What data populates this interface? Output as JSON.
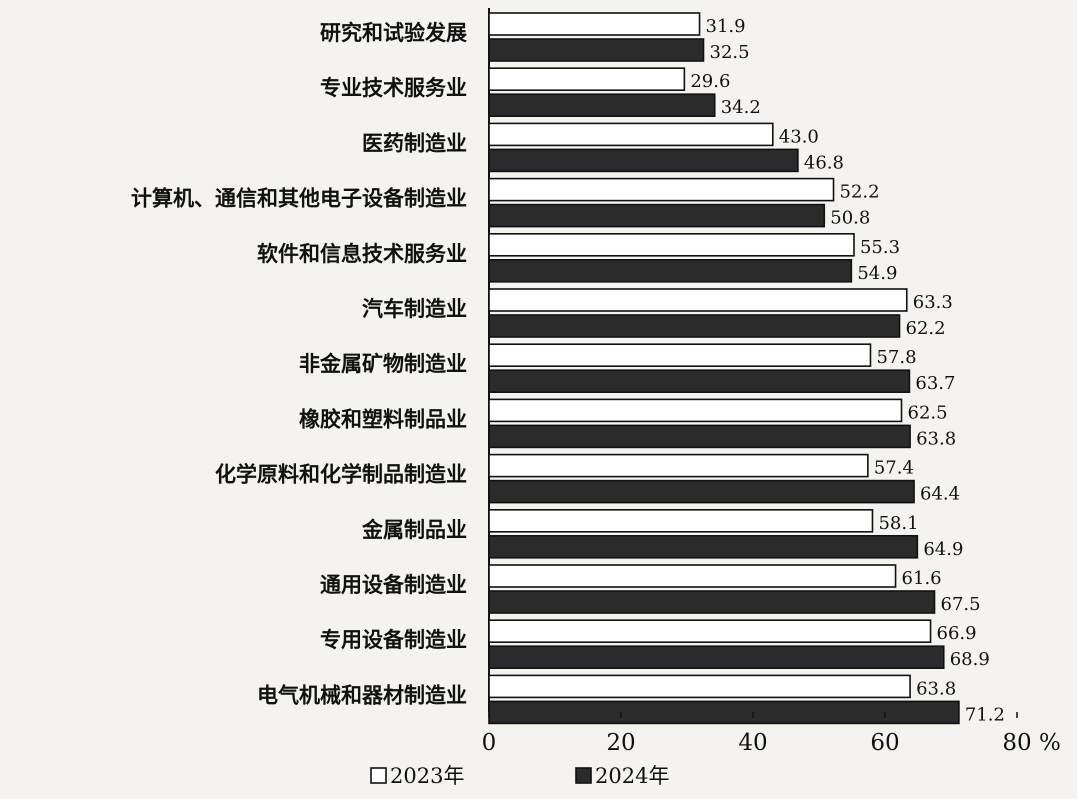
{
  "chart_data": {
    "type": "bar",
    "orientation": "horizontal",
    "categories": [
      "研究和试验发展",
      "专业技术服务业",
      "医药制造业",
      "计算机、通信和其他电子设备制造业",
      "软件和信息技术服务业",
      "汽车制造业",
      "非金属矿物制造业",
      "橡胶和塑料制品业",
      "化学原料和化学制品制造业",
      "金属制品业",
      "通用设备制造业",
      "专用设备制造业",
      "电气机械和器材制造业"
    ],
    "series": [
      {
        "name": "2023年",
        "color": "#ffffff",
        "values": [
          31.9,
          29.6,
          43.0,
          52.2,
          55.3,
          63.3,
          57.8,
          62.5,
          57.4,
          58.1,
          61.6,
          66.9,
          63.8
        ],
        "value_labels": [
          "31.9",
          "29.6",
          "43.0",
          "52.2",
          "55.3",
          "63.3",
          "57.8",
          "62.5",
          "57.4",
          "58.1",
          "61.6",
          "66.9",
          "63.8"
        ]
      },
      {
        "name": "2024年",
        "color": "#2b2b2b",
        "values": [
          32.5,
          34.2,
          46.8,
          50.8,
          54.9,
          62.2,
          63.7,
          63.8,
          64.4,
          64.9,
          67.5,
          68.9,
          71.2
        ],
        "value_labels": [
          "32.5",
          "34.2",
          "46.8",
          "50.8",
          "54.9",
          "62.2",
          "63.7",
          "63.8",
          "64.4",
          "64.9",
          "67.5",
          "68.9",
          "71.2"
        ]
      }
    ],
    "xlim": [
      0,
      80
    ],
    "xticks": [
      0,
      20,
      40,
      60,
      80
    ],
    "xtick_labels": [
      "0",
      "20",
      "40",
      "60",
      "80"
    ],
    "x_unit": "%",
    "legend_position": "bottom-left",
    "grid": false
  }
}
